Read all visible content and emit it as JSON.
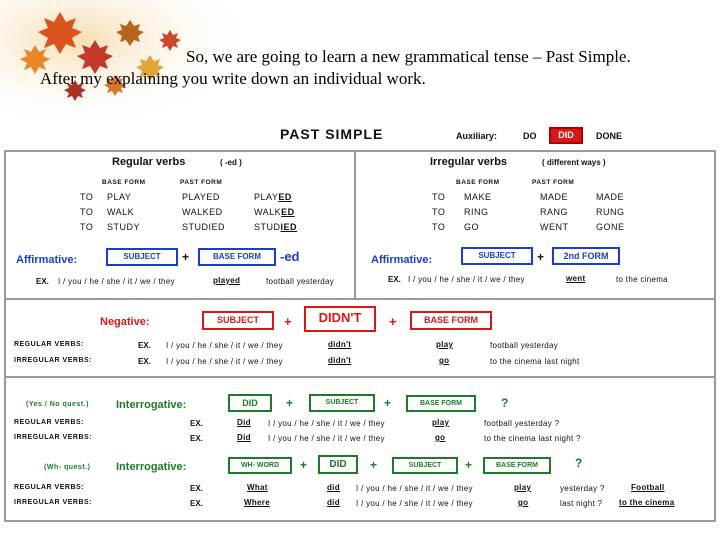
{
  "intro": {
    "line1": "So, we are going to learn a new grammatical tense – Past Simple.",
    "line2": "After my explaining you write down an individual work."
  },
  "header": {
    "title": "PAST SIMPLE",
    "auxiliary_label": "Auxiliary:",
    "aux_do": "DO",
    "aux_did": "DID",
    "aux_done": "DONE"
  },
  "regular": {
    "title": "Regular verbs",
    "note": "( -ed )",
    "col_base": "BASE FORM",
    "col_past": "PAST FORM",
    "rows": [
      {
        "to": "TO",
        "base": "PLAY",
        "past": "PLAYED",
        "past_stem": "PLAY",
        "past_end": "ED"
      },
      {
        "to": "TO",
        "base": "WALK",
        "past": "WALKED",
        "past_stem": "WALK",
        "past_end": "ED"
      },
      {
        "to": "TO",
        "base": "STUDY",
        "past": "STUDIED",
        "past_stem": "STUD",
        "past_end": "IED"
      }
    ],
    "affirmative_label": "Affirmative:",
    "subject": "SUBJECT",
    "plus": "+",
    "base_form": "BASE FORM",
    "ending": "-ed",
    "example_ex": "EX.",
    "example_pronouns": "I / you / he / she / it / we / they",
    "example_verb": "played",
    "example_rest": "football yesterday"
  },
  "irregular": {
    "title": "Irregular verbs",
    "note": "( different ways )",
    "col_base": "BASE FORM",
    "col_past": "PAST FORM",
    "rows": [
      {
        "to": "TO",
        "base": "MAKE",
        "past": "MADE",
        "part": "MADE"
      },
      {
        "to": "TO",
        "base": "RING",
        "past": "RANG",
        "part": "RUNG"
      },
      {
        "to": "TO",
        "base": "GO",
        "past": "WENT",
        "part": "GONE"
      }
    ],
    "affirmative_label": "Affirmative:",
    "subject": "SUBJECT",
    "plus": "+",
    "second_form": "2nd FORM",
    "example_ex": "EX.",
    "example_pronouns": "I / you / he / she / it / we / they",
    "example_verb": "went",
    "example_rest": "to the cinema"
  },
  "negative": {
    "label": "Negative:",
    "subject": "SUBJECT",
    "plus1": "+",
    "didnt": "DIDN'T",
    "plus2": "+",
    "base_form": "BASE FORM",
    "rows": [
      {
        "label": "REGULAR VERBS:",
        "ex": "EX.",
        "pronouns": "I / you / he / she / it / we / they",
        "aux": "didn't",
        "verb": "play",
        "rest": "football yesterday"
      },
      {
        "label": "IRREGULAR VERBS:",
        "ex": "EX.",
        "pronouns": "I / you / he / she / it / we / they",
        "aux": "didn't",
        "verb": "go",
        "rest": "to the cinema last night"
      }
    ]
  },
  "yes_no": {
    "tag": "(Yes / No quest.)",
    "label": "Interrogative:",
    "did": "DID",
    "plus1": "+",
    "subject": "SUBJECT",
    "plus2": "+",
    "base_form": "BASE FORM",
    "qmark": "?",
    "rows": [
      {
        "label": "REGULAR VERBS:",
        "ex": "EX.",
        "aux": "Did",
        "pronouns": "I / you / he / she / it / we / they",
        "verb": "play",
        "rest": "football yesterday  ?"
      },
      {
        "label": "IRREGULAR VERBS:",
        "ex": "EX.",
        "aux": "Did",
        "pronouns": "I / you / he / she / it / we / they",
        "verb": "go",
        "rest": "to the cinema last night  ?"
      }
    ]
  },
  "wh": {
    "tag": "(Wh- quest.)",
    "label": "Interrogative:",
    "wh_word": "WH- WORD",
    "plus1": "+",
    "did": "DID",
    "plus2": "+",
    "subject": "SUBJECT",
    "plus3": "+",
    "base_form": "BASE FORM",
    "qmark": "?",
    "rows": [
      {
        "label": "REGULAR VERBS:",
        "ex": "EX.",
        "wh": "What",
        "aux": "did",
        "pronouns": "I / you / he / she / it / we / they",
        "verb": "play",
        "rest": "yesterday  ?",
        "answer": "Football"
      },
      {
        "label": "IRREGULAR VERBS:",
        "ex": "EX.",
        "wh": "Where",
        "aux": "did",
        "pronouns": "I / you / he / she / it / we / they",
        "verb": "go",
        "rest": "last night  ?",
        "answer": "to the cinema"
      }
    ]
  },
  "colors": {
    "blue": "#1a3ccf",
    "red": "#d81818",
    "green": "#1d7a28"
  }
}
